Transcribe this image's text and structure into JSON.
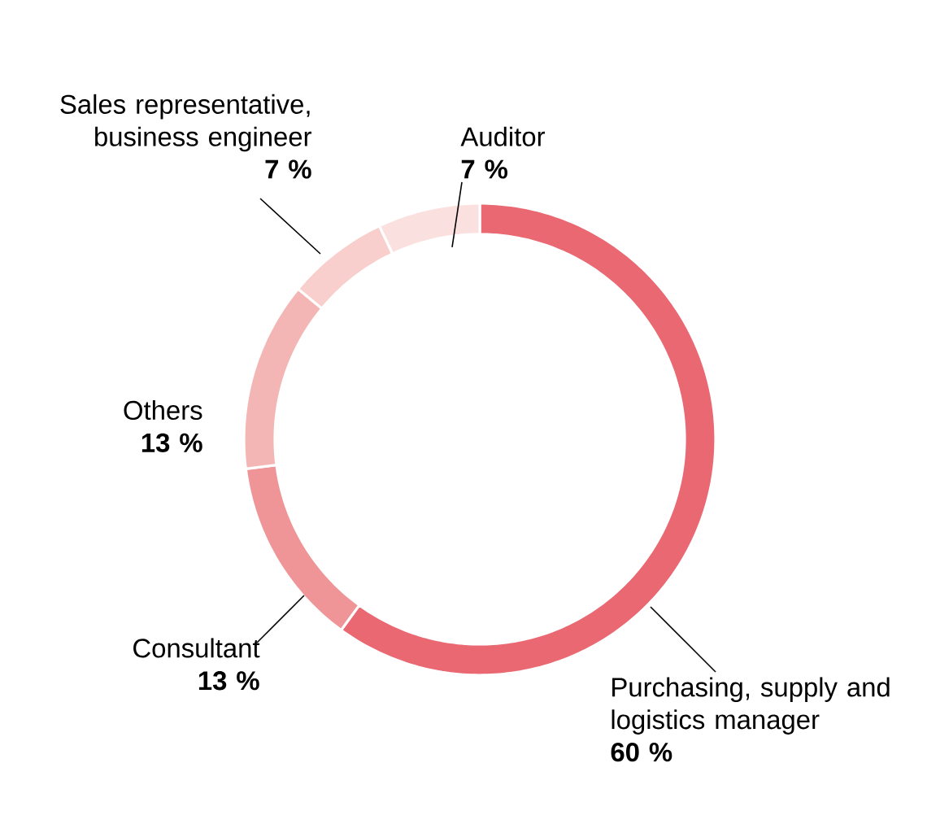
{
  "chart_data": {
    "type": "donut",
    "categories": [
      "Purchasing, supply and logistics manager",
      "Consultant",
      "Others",
      "Sales representative, business engineer",
      "Auditor"
    ],
    "values": [
      60,
      13,
      13,
      7,
      7
    ],
    "value_labels": [
      "60 %",
      "13 %",
      "13 %",
      "7 %",
      "7 %"
    ],
    "colors": [
      "#e96872",
      "#ef9597",
      "#f4b6b4",
      "#f8cfcd",
      "#fbe0e0"
    ]
  }
}
